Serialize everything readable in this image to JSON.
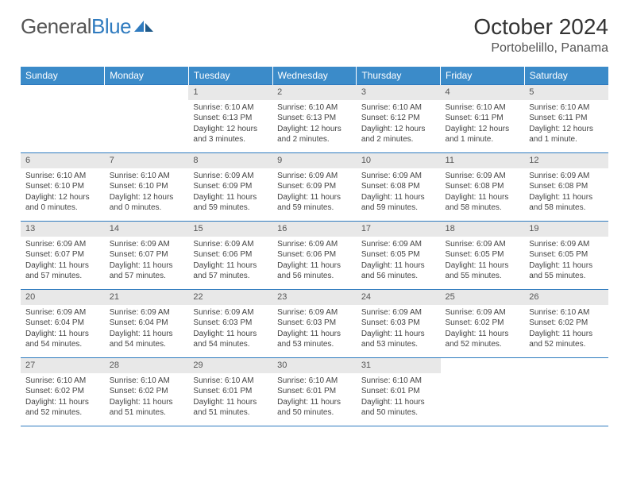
{
  "logo": {
    "word1": "General",
    "word2": "Blue"
  },
  "title": "October 2024",
  "location": "Portobelillo, Panama",
  "colors": {
    "header_bg": "#3b8bc9",
    "header_text": "#ffffff",
    "border": "#2f7bbf",
    "daynum_bg": "#e8e8e8",
    "text": "#444444",
    "logo_gray": "#555555",
    "logo_blue": "#2f7bbf"
  },
  "weekdays": [
    "Sunday",
    "Monday",
    "Tuesday",
    "Wednesday",
    "Thursday",
    "Friday",
    "Saturday"
  ],
  "weeks": [
    [
      null,
      null,
      {
        "n": "1",
        "sr": "6:10 AM",
        "ss": "6:13 PM",
        "dl": "12 hours and 3 minutes."
      },
      {
        "n": "2",
        "sr": "6:10 AM",
        "ss": "6:13 PM",
        "dl": "12 hours and 2 minutes."
      },
      {
        "n": "3",
        "sr": "6:10 AM",
        "ss": "6:12 PM",
        "dl": "12 hours and 2 minutes."
      },
      {
        "n": "4",
        "sr": "6:10 AM",
        "ss": "6:11 PM",
        "dl": "12 hours and 1 minute."
      },
      {
        "n": "5",
        "sr": "6:10 AM",
        "ss": "6:11 PM",
        "dl": "12 hours and 1 minute."
      }
    ],
    [
      {
        "n": "6",
        "sr": "6:10 AM",
        "ss": "6:10 PM",
        "dl": "12 hours and 0 minutes."
      },
      {
        "n": "7",
        "sr": "6:10 AM",
        "ss": "6:10 PM",
        "dl": "12 hours and 0 minutes."
      },
      {
        "n": "8",
        "sr": "6:09 AM",
        "ss": "6:09 PM",
        "dl": "11 hours and 59 minutes."
      },
      {
        "n": "9",
        "sr": "6:09 AM",
        "ss": "6:09 PM",
        "dl": "11 hours and 59 minutes."
      },
      {
        "n": "10",
        "sr": "6:09 AM",
        "ss": "6:08 PM",
        "dl": "11 hours and 59 minutes."
      },
      {
        "n": "11",
        "sr": "6:09 AM",
        "ss": "6:08 PM",
        "dl": "11 hours and 58 minutes."
      },
      {
        "n": "12",
        "sr": "6:09 AM",
        "ss": "6:08 PM",
        "dl": "11 hours and 58 minutes."
      }
    ],
    [
      {
        "n": "13",
        "sr": "6:09 AM",
        "ss": "6:07 PM",
        "dl": "11 hours and 57 minutes."
      },
      {
        "n": "14",
        "sr": "6:09 AM",
        "ss": "6:07 PM",
        "dl": "11 hours and 57 minutes."
      },
      {
        "n": "15",
        "sr": "6:09 AM",
        "ss": "6:06 PM",
        "dl": "11 hours and 57 minutes."
      },
      {
        "n": "16",
        "sr": "6:09 AM",
        "ss": "6:06 PM",
        "dl": "11 hours and 56 minutes."
      },
      {
        "n": "17",
        "sr": "6:09 AM",
        "ss": "6:05 PM",
        "dl": "11 hours and 56 minutes."
      },
      {
        "n": "18",
        "sr": "6:09 AM",
        "ss": "6:05 PM",
        "dl": "11 hours and 55 minutes."
      },
      {
        "n": "19",
        "sr": "6:09 AM",
        "ss": "6:05 PM",
        "dl": "11 hours and 55 minutes."
      }
    ],
    [
      {
        "n": "20",
        "sr": "6:09 AM",
        "ss": "6:04 PM",
        "dl": "11 hours and 54 minutes."
      },
      {
        "n": "21",
        "sr": "6:09 AM",
        "ss": "6:04 PM",
        "dl": "11 hours and 54 minutes."
      },
      {
        "n": "22",
        "sr": "6:09 AM",
        "ss": "6:03 PM",
        "dl": "11 hours and 54 minutes."
      },
      {
        "n": "23",
        "sr": "6:09 AM",
        "ss": "6:03 PM",
        "dl": "11 hours and 53 minutes."
      },
      {
        "n": "24",
        "sr": "6:09 AM",
        "ss": "6:03 PM",
        "dl": "11 hours and 53 minutes."
      },
      {
        "n": "25",
        "sr": "6:09 AM",
        "ss": "6:02 PM",
        "dl": "11 hours and 52 minutes."
      },
      {
        "n": "26",
        "sr": "6:10 AM",
        "ss": "6:02 PM",
        "dl": "11 hours and 52 minutes."
      }
    ],
    [
      {
        "n": "27",
        "sr": "6:10 AM",
        "ss": "6:02 PM",
        "dl": "11 hours and 52 minutes."
      },
      {
        "n": "28",
        "sr": "6:10 AM",
        "ss": "6:02 PM",
        "dl": "11 hours and 51 minutes."
      },
      {
        "n": "29",
        "sr": "6:10 AM",
        "ss": "6:01 PM",
        "dl": "11 hours and 51 minutes."
      },
      {
        "n": "30",
        "sr": "6:10 AM",
        "ss": "6:01 PM",
        "dl": "11 hours and 50 minutes."
      },
      {
        "n": "31",
        "sr": "6:10 AM",
        "ss": "6:01 PM",
        "dl": "11 hours and 50 minutes."
      },
      null,
      null
    ]
  ]
}
